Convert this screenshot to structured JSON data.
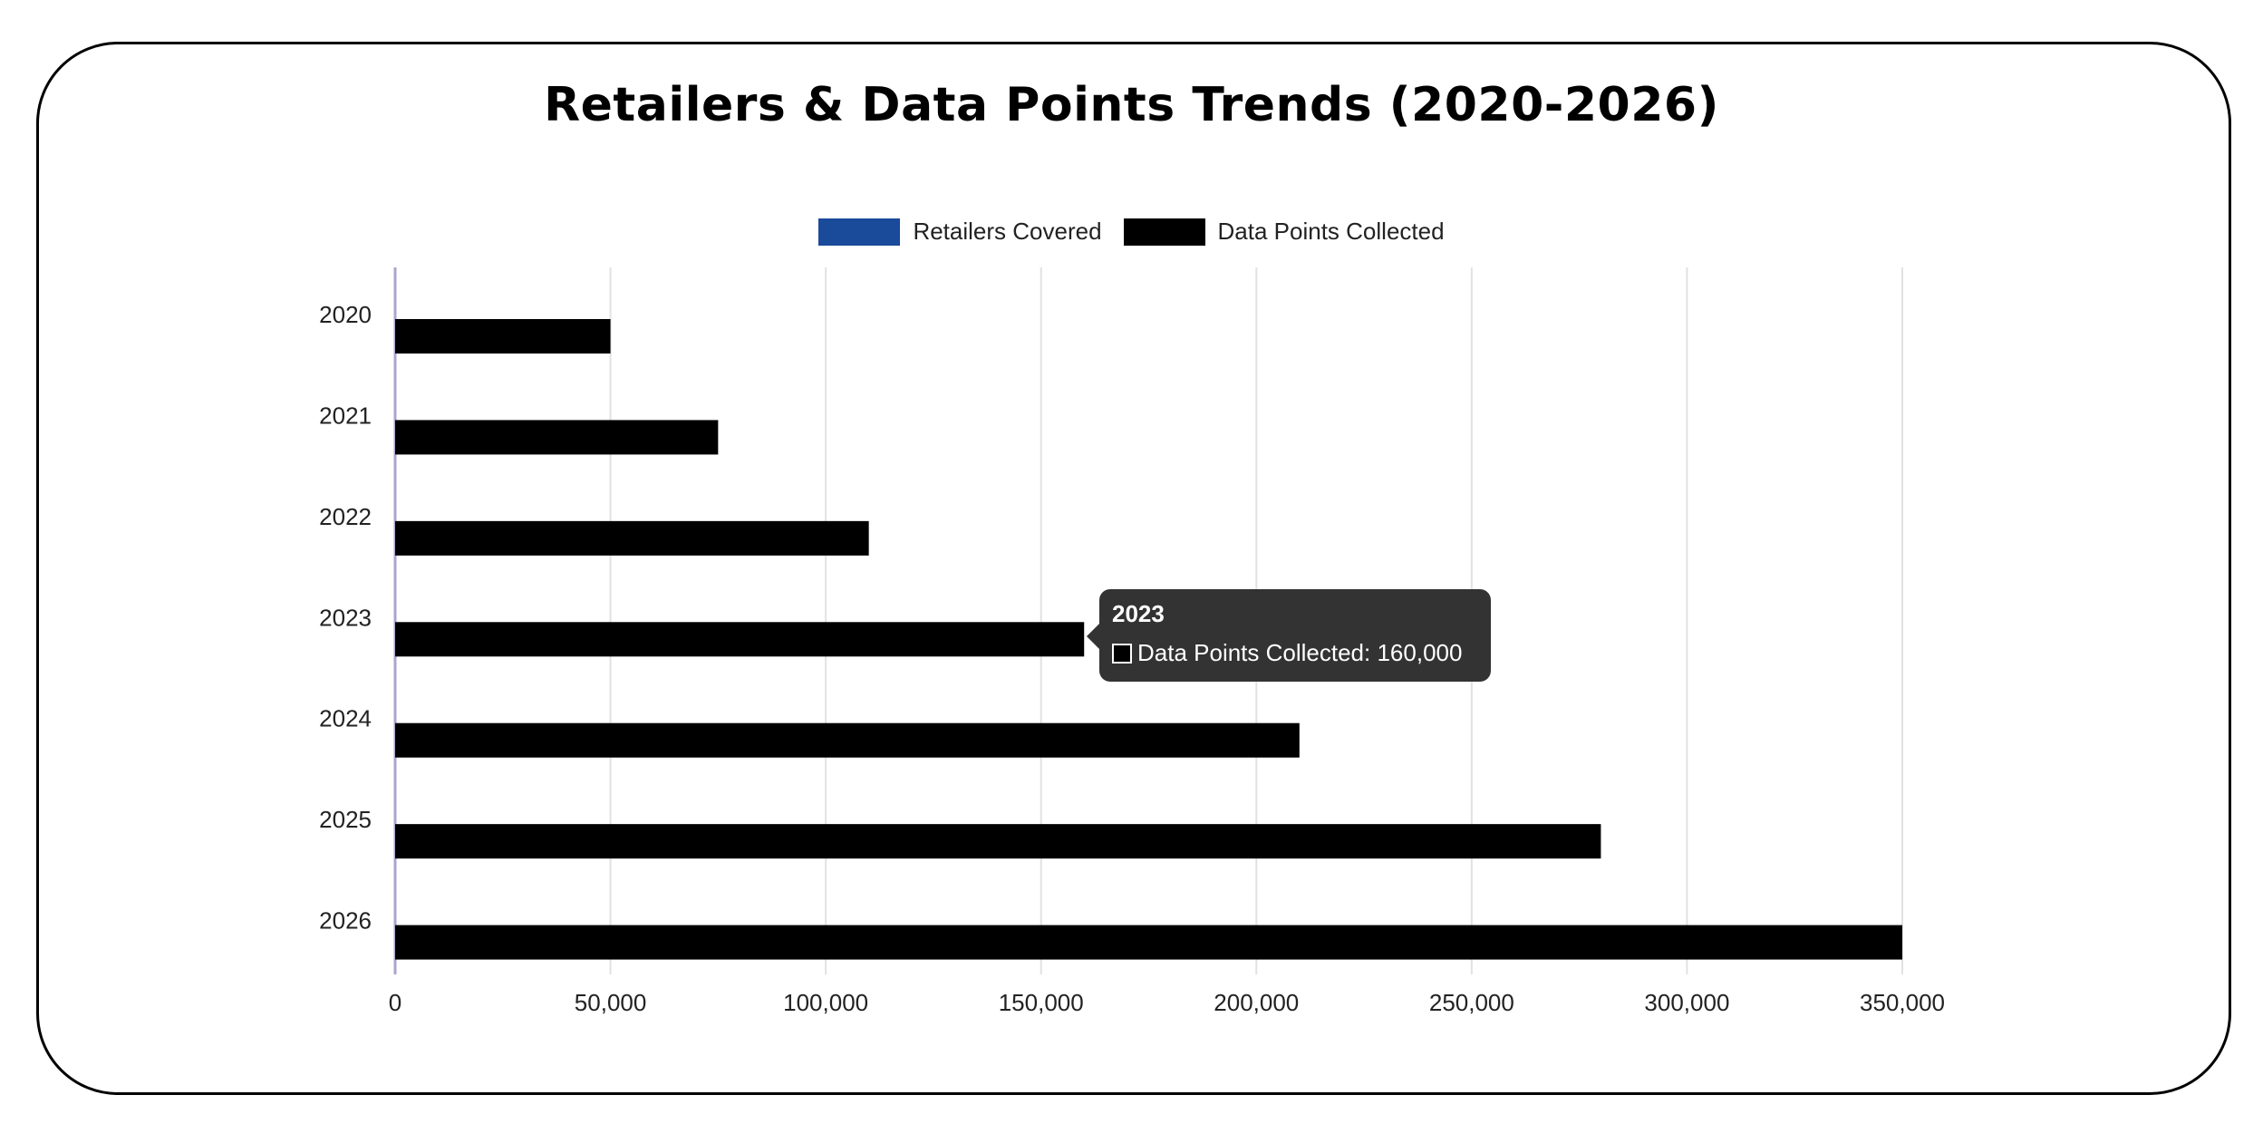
{
  "chart_data": {
    "type": "bar",
    "orientation": "horizontal",
    "title": "Retailers & Data Points Trends (2020-2026)",
    "categories": [
      "2020",
      "2021",
      "2022",
      "2023",
      "2024",
      "2025",
      "2026"
    ],
    "series": [
      {
        "name": "Retailers Covered",
        "color": "#1a4a9a",
        "values": [
          0,
          0,
          0,
          0,
          0,
          0,
          0
        ]
      },
      {
        "name": "Data Points Collected",
        "color": "#000000",
        "values": [
          50000,
          75000,
          110000,
          160000,
          210000,
          280000,
          350000
        ]
      }
    ],
    "xlim": [
      0,
      350000
    ],
    "x_ticks": [
      "0",
      "50,000",
      "100,000",
      "150,000",
      "200,000",
      "250,000",
      "300,000",
      "350,000"
    ],
    "grid": true,
    "legend_position": "top",
    "tooltip": {
      "title": "2023",
      "label": "Data Points Collected: 160,000"
    }
  }
}
